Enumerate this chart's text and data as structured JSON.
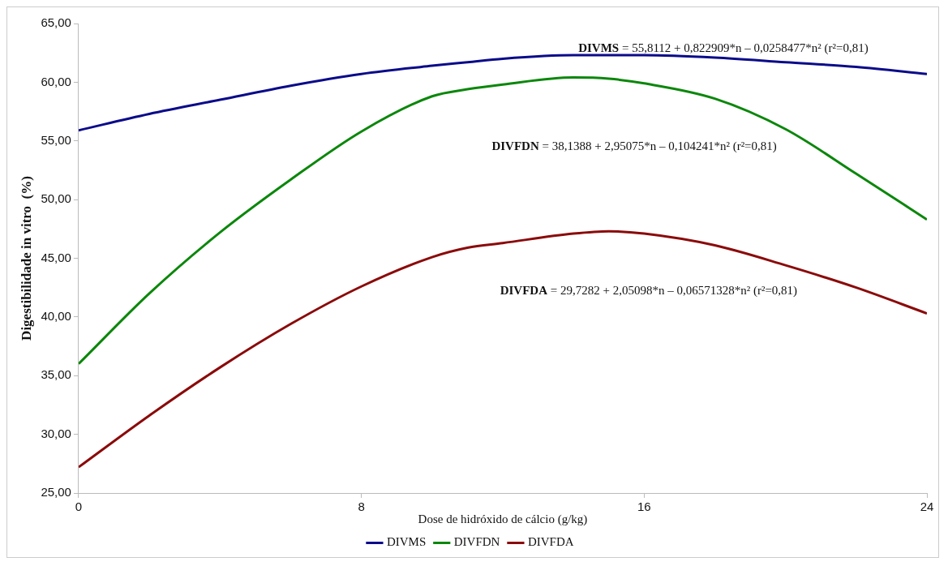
{
  "chart_data": {
    "type": "line",
    "xlabel": "Dose de hidróxido de cálcio (g/kg)",
    "ylabel": "Digestibilidade in vitro  (%)",
    "x": [
      0,
      2,
      4,
      6,
      8,
      10,
      11,
      12,
      14,
      15,
      16,
      18,
      20,
      22,
      24
    ],
    "series": [
      {
        "name": "DIVMS",
        "color": "#0b0b8a",
        "values": [
          55.9,
          57.3,
          58.5,
          59.7,
          60.7,
          61.4,
          61.7,
          62.0,
          62.3,
          62.3,
          62.3,
          62.1,
          61.7,
          61.3,
          60.7
        ]
      },
      {
        "name": "DIVFDN",
        "color": "#0b870b",
        "values": [
          36.0,
          42.0,
          47.2,
          51.7,
          55.8,
          58.8,
          59.4,
          59.8,
          60.4,
          60.3,
          59.9,
          58.6,
          56.0,
          52.2,
          48.3
        ]
      },
      {
        "name": "DIVFDA",
        "color": "#8b0a0a",
        "values": [
          27.2,
          31.6,
          35.7,
          39.4,
          42.6,
          45.1,
          45.9,
          46.3,
          47.1,
          47.3,
          47.1,
          46.1,
          44.4,
          42.5,
          40.3
        ]
      }
    ],
    "xlim": [
      0,
      24
    ],
    "xticks": [
      0,
      8,
      16,
      24
    ],
    "ylim": [
      25,
      65
    ],
    "yticks": [
      {
        "value": 25,
        "label": "25,00"
      },
      {
        "value": 30,
        "label": "30,00"
      },
      {
        "value": 35,
        "label": "35,00"
      },
      {
        "value": 40,
        "label": "40,00"
      },
      {
        "value": 45,
        "label": "45,00"
      },
      {
        "value": 50,
        "label": "50,00"
      },
      {
        "value": 55,
        "label": "55,00"
      },
      {
        "value": 60,
        "label": "60,00"
      },
      {
        "value": 65,
        "label": "65,00"
      }
    ],
    "grid": false,
    "legend": "bottom",
    "marker": "none",
    "line_style": "solid",
    "annotations": [
      "DIVMS = 55,8112 + 0,822909*n – 0,0258477*n² (r²=0,81)",
      "DIVFDN = 38,1388 + 2,95075*n – 0,104241*n² (r²=0,81)",
      "DIVFDA = 29,7282 + 2,05098*n – 0,06571328*n² (r²=0,81)"
    ]
  }
}
